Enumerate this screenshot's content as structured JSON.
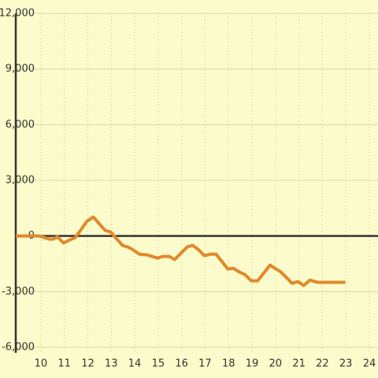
{
  "chart_data": {
    "type": "line",
    "x": [
      8.93,
      9.93,
      10.37,
      10.53,
      10.7,
      10.97,
      11.23,
      11.47,
      11.97,
      12.24,
      12.74,
      12.98,
      13.48,
      13.7,
      13.9,
      14.2,
      14.53,
      14.97,
      15.2,
      15.47,
      15.7,
      15.9,
      16.24,
      16.47,
      16.7,
      16.97,
      17.23,
      17.47,
      17.97,
      18.2,
      18.47,
      18.7,
      18.97,
      19.24,
      19.77,
      19.97,
      20.2,
      20.54,
      20.7,
      20.97,
      21.2,
      21.47,
      21.8,
      22.98
    ],
    "values": [
      0,
      0,
      -170,
      -170,
      -40,
      -380,
      -210,
      -85,
      800,
      1020,
      300,
      210,
      -510,
      -590,
      -720,
      -980,
      -1020,
      -1190,
      -1100,
      -1100,
      -1270,
      -1020,
      -590,
      -510,
      -720,
      -1060,
      -980,
      -980,
      -1780,
      -1740,
      -1950,
      -2080,
      -2420,
      -2420,
      -1570,
      -1740,
      -1910,
      -2330,
      -2550,
      -2460,
      -2670,
      -2380,
      -2500,
      -2500
    ],
    "color": "#e0892c",
    "xlim": [
      8.93,
      24.37
    ],
    "xticks": [
      10,
      11,
      12,
      13,
      14,
      15,
      16,
      17,
      18,
      19,
      20,
      21,
      22,
      23,
      24
    ],
    "ylim": [
      -6000,
      12000
    ],
    "yticks": [
      {
        "value": -6000,
        "label": "-6,000"
      },
      {
        "value": -3000,
        "label": "-3,000"
      },
      0,
      {
        "value": 3000,
        "label": "3,000"
      },
      {
        "value": 6000,
        "label": "6,000"
      },
      {
        "value": 9000,
        "label": "9,000"
      },
      {
        "value": 12000,
        "label": "12,000"
      }
    ],
    "grid": true
  }
}
